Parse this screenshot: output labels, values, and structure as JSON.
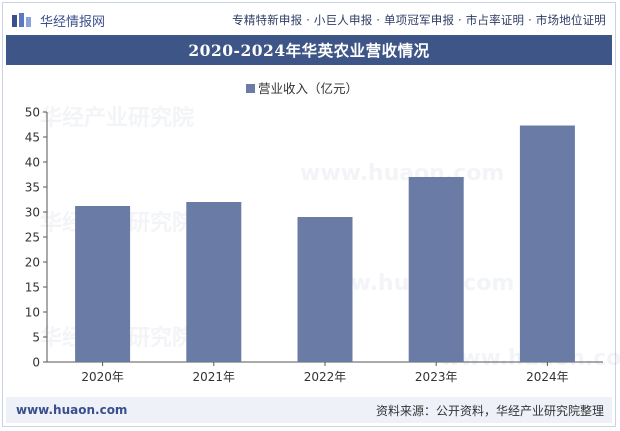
{
  "header": {
    "brand_name": "华经情报网",
    "links": "专精特新申报 · 小巨人申报 · 单项冠军申报 · 市占率证明 · 市场地位证明"
  },
  "title": "2020-2024年华英农业营收情况",
  "footer": {
    "url": "www.huaon.com",
    "source": "资料来源：公开资料，华经产业研究院整理"
  },
  "watermark": {
    "text": "华经产业研究院",
    "url": "www.huaon.com"
  },
  "colors": {
    "bar": "#6a7ba5",
    "title_bg": "#3e5587",
    "brand": "#3a4f8c"
  },
  "chart_data": {
    "type": "bar",
    "title": "2020-2024年华英农业营收情况",
    "categories": [
      "2020年",
      "2021年",
      "2022年",
      "2023年",
      "2024年"
    ],
    "series": [
      {
        "name": "营业收入（亿元）",
        "values": [
          31.2,
          32.0,
          29.0,
          37.0,
          47.3
        ]
      }
    ],
    "ylim": [
      0,
      50
    ],
    "yticks": [
      0,
      5,
      10,
      15,
      20,
      25,
      30,
      35,
      40,
      45,
      50
    ],
    "xlabel": "",
    "ylabel": "",
    "grid": false,
    "legend": "top-center"
  }
}
